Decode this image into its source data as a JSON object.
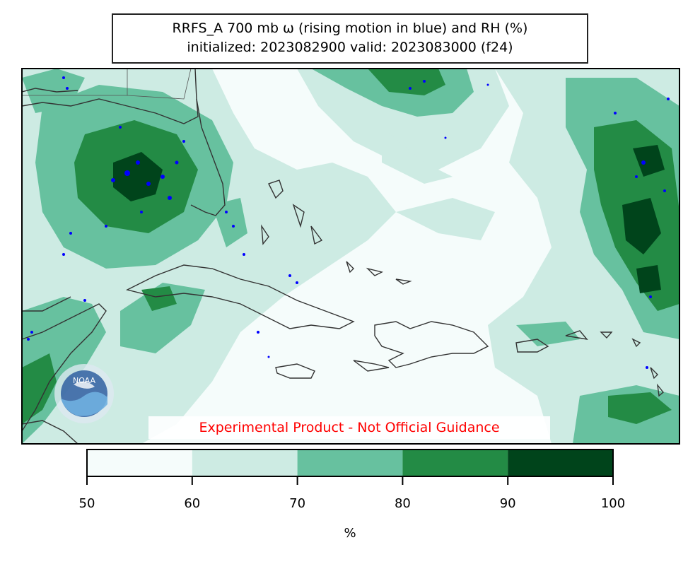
{
  "title": {
    "line1": "RRFS_A 700 mb ω (rising motion in blue) and RH (%)",
    "line2": "initialized: 2023082900 valid: 2023083000 (f24)"
  },
  "disclaimer": "Experimental Product - Not Official Guidance",
  "logo": {
    "text": "NOAA",
    "icon": "noaa-logo-icon"
  },
  "colorbar": {
    "ticks": [
      "50",
      "60",
      "70",
      "80",
      "90",
      "100"
    ],
    "unit": "%",
    "bins": [
      {
        "range": "50-60",
        "color": "#f5fcfb"
      },
      {
        "range": "60-70",
        "color": "#cdebe3"
      },
      {
        "range": "70-80",
        "color": "#67c19f"
      },
      {
        "range": "80-90",
        "color": "#238b45"
      },
      {
        "range": "90-100",
        "color": "#00441b"
      }
    ]
  },
  "colors": {
    "rising_motion": "#0000ff",
    "coastline": "#333333",
    "disclaimer_text": "#ff0000"
  }
}
